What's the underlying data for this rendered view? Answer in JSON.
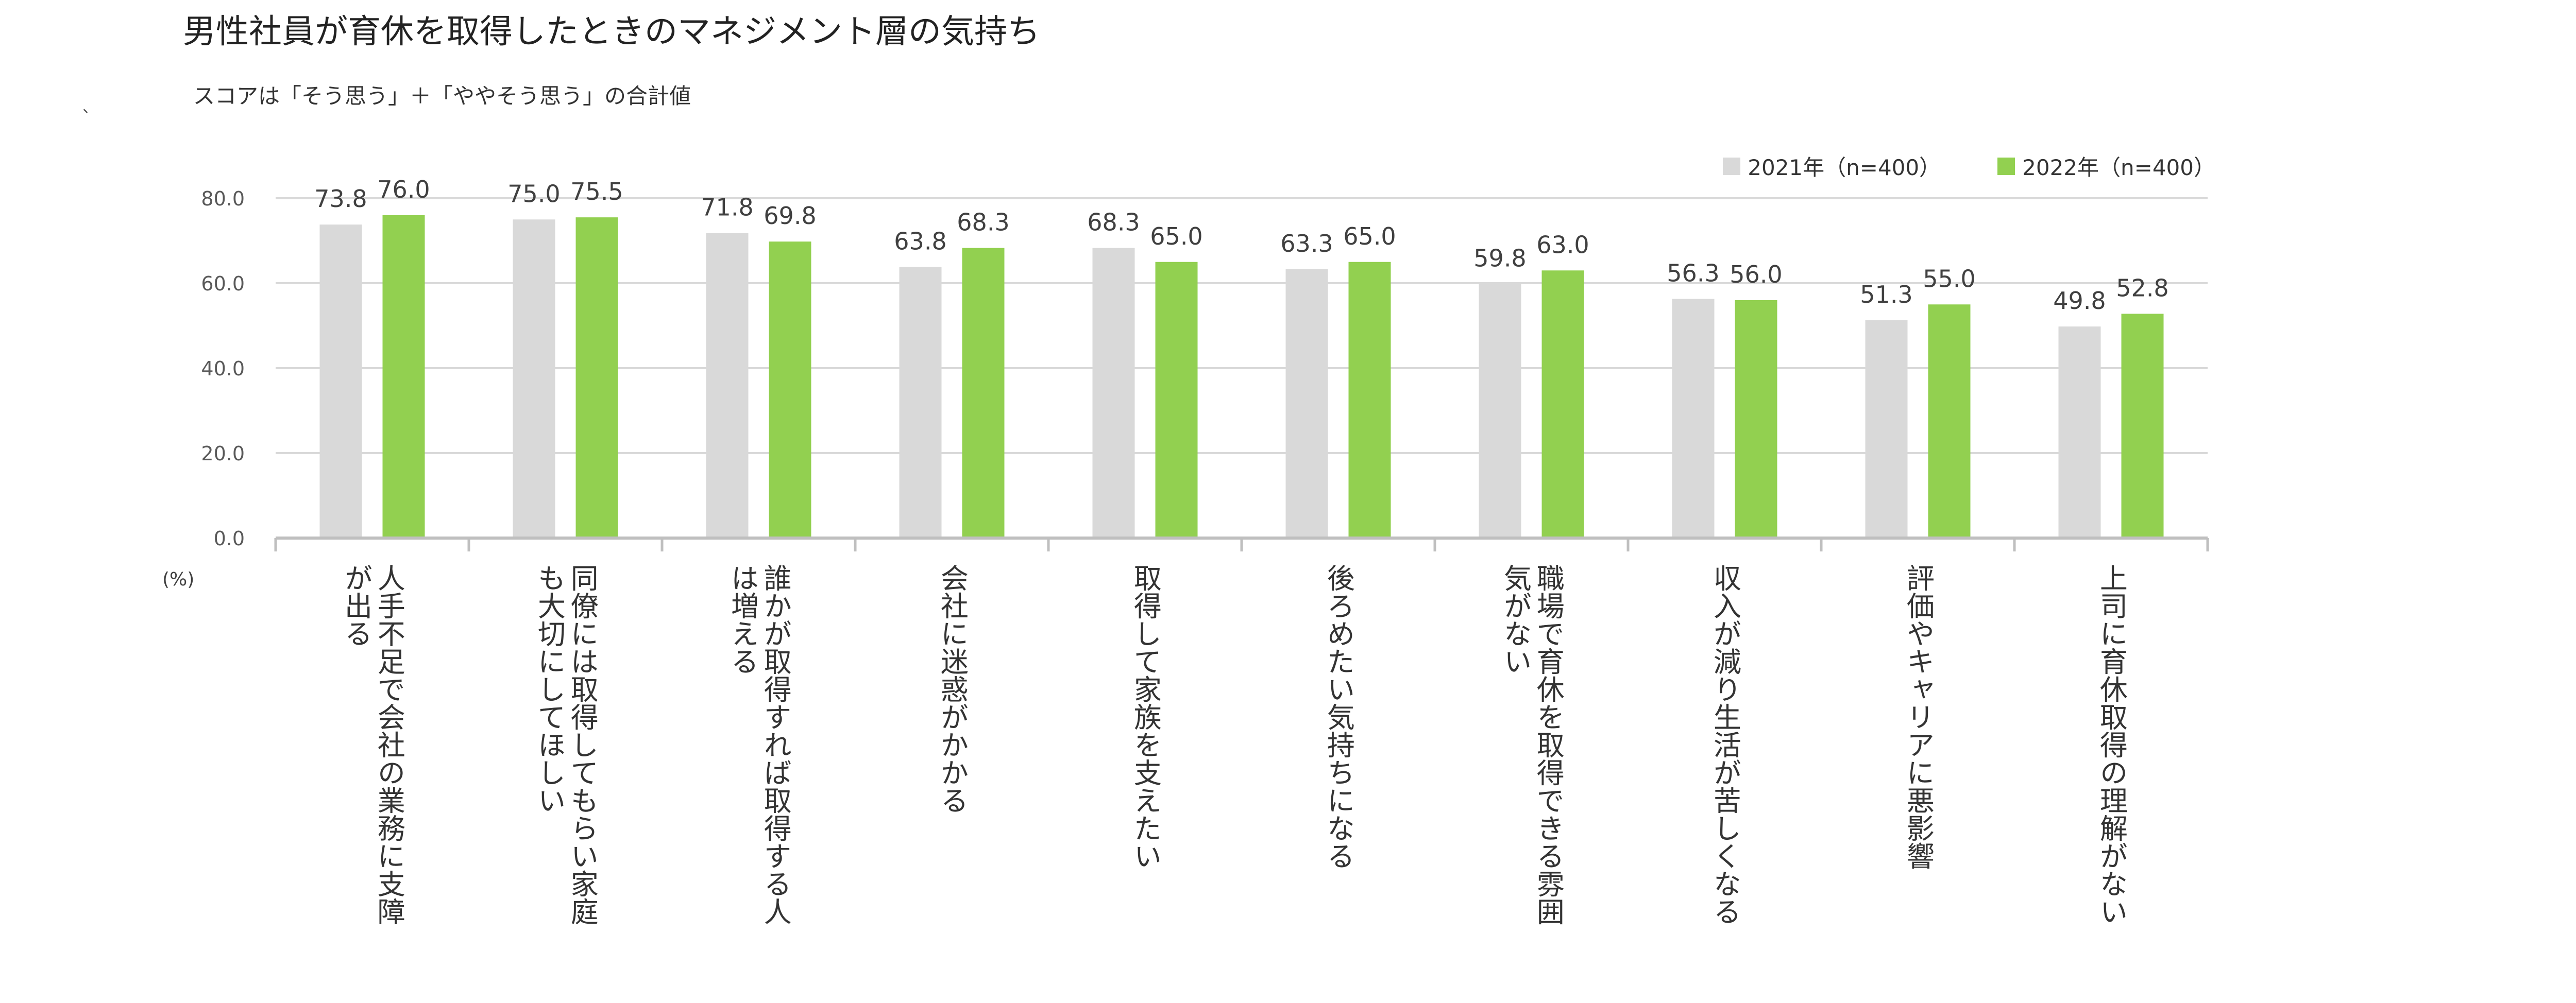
{
  "title": "男性社員が育休を取得したときのマネジメント層の気持ち",
  "subtitle": "スコアは「そう思う」＋「ややそう思う」の合計値",
  "mark": "、",
  "unit": "(%)",
  "legend": [
    {
      "label": "2021年（n=400）",
      "color": "#d9d9d9"
    },
    {
      "label": "2022年（n=400）",
      "color": "#92d050"
    }
  ],
  "chart_data": {
    "type": "bar",
    "title": "男性社員が育休を取得したときのマネジメント層の気持ち",
    "subtitle": "スコアは「そう思う」＋「ややそう思う」の合計値",
    "xlabel": "",
    "ylabel": "(%)",
    "ylim": [
      0,
      80
    ],
    "yticks": [
      0,
      20,
      40,
      60,
      80
    ],
    "ytick_labels": [
      "0.0",
      "20.0",
      "40.0",
      "60.0",
      "80.0"
    ],
    "grid": true,
    "legend_position": "top-right",
    "categories": [
      "人手不足で会社の業務に支障が出る",
      "同僚には取得してもらい家庭も大切にしてほしい",
      "誰かが取得すれば取得する人は増える",
      "会社に迷惑がかかる",
      "取得して家族を支えたい",
      "後ろめたい気持ちになる",
      "職場で育休を取得できる雰囲気がない",
      "収入が減り生活が苦しくなる",
      "評価やキャリアに悪影響",
      "上司に育休取得の理解がない"
    ],
    "category_lines": [
      [
        "人手不足で会社の業務に支障",
        "が出る"
      ],
      [
        "同僚には取得してもらい家庭",
        "も大切にしてほしい"
      ],
      [
        "誰かが取得すれば取得する人",
        "は増える"
      ],
      [
        "会社に迷惑がかかる"
      ],
      [
        "取得して家族を支えたい"
      ],
      [
        "後ろめたい気持ちになる"
      ],
      [
        "職場で育休を取得できる雰囲",
        "気がない"
      ],
      [
        "収入が減り生活が苦しくなる"
      ],
      [
        "評価やキャリアに悪影響"
      ],
      [
        "上司に育休取得の理解がない"
      ]
    ],
    "series": [
      {
        "name": "2021年（n=400）",
        "color": "#d9d9d9",
        "values": [
          73.8,
          75.0,
          71.8,
          63.8,
          68.3,
          63.3,
          59.8,
          56.3,
          51.3,
          49.8
        ],
        "labels": [
          "73.8",
          "75.0",
          "71.8",
          "63.8",
          "68.3",
          "63.3",
          "59.8",
          "56.3",
          "51.3",
          "49.8"
        ]
      },
      {
        "name": "2022年（n=400）",
        "color": "#92d050",
        "values": [
          76.0,
          75.5,
          69.8,
          68.3,
          65.0,
          65.0,
          63.0,
          56.0,
          55.0,
          52.8
        ],
        "labels": [
          "76.0",
          "75.5",
          "69.8",
          "68.3",
          "65.0",
          "65.0",
          "63.0",
          "56.0",
          "55.0",
          "52.8"
        ]
      }
    ]
  }
}
